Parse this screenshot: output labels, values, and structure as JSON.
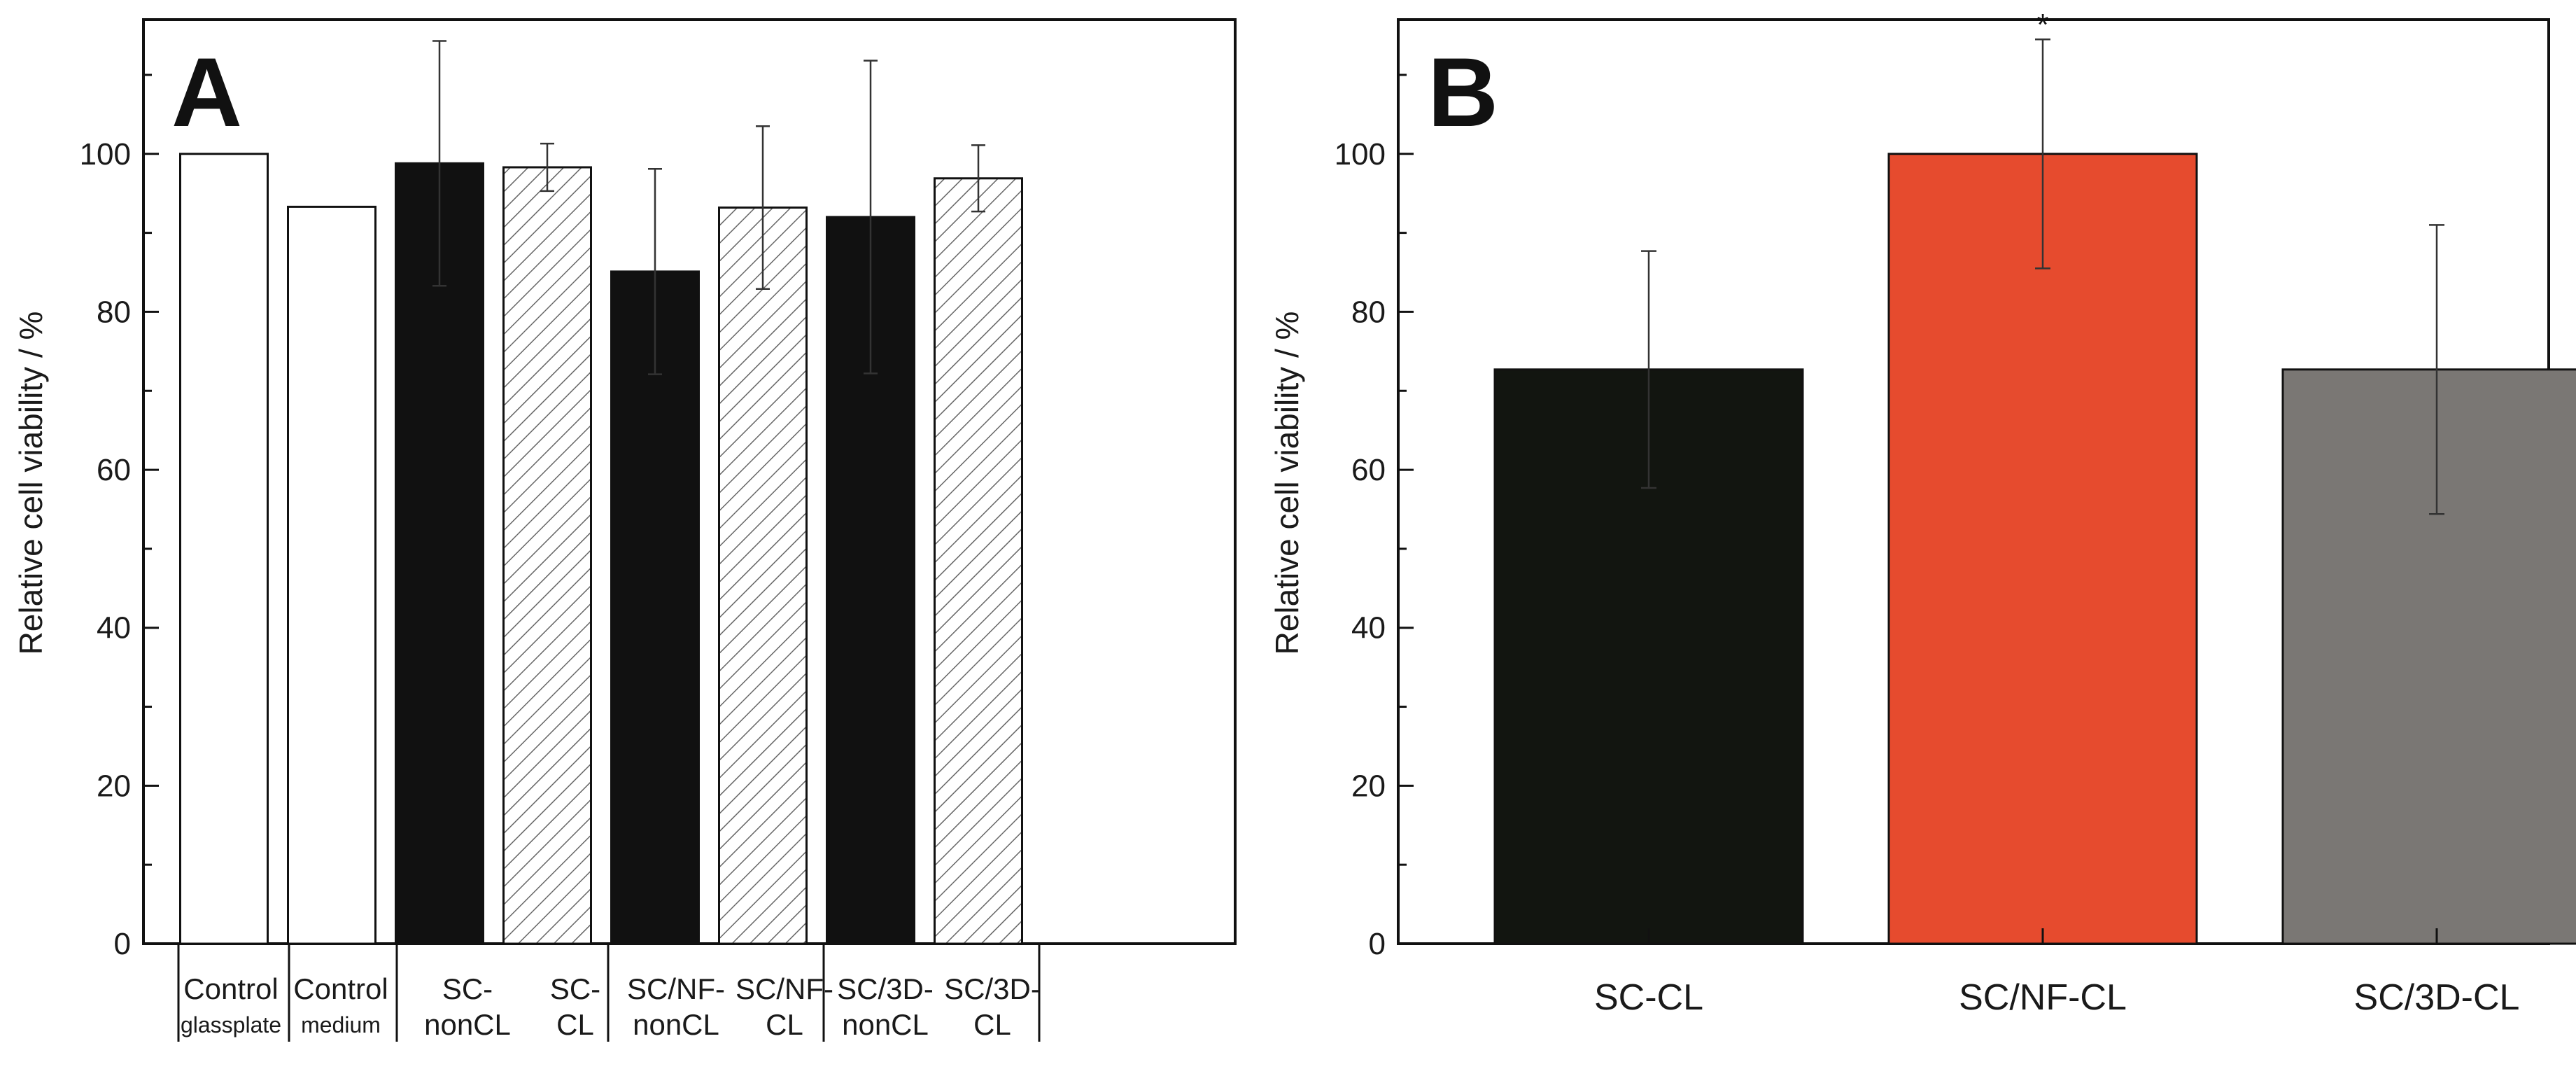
{
  "chart_data": [
    {
      "panel": "A",
      "type": "bar",
      "ylabel": "Relative cell viability / %",
      "ylim": [
        0,
        117
      ],
      "yticks": [
        0,
        20,
        40,
        60,
        80,
        100
      ],
      "categories": [
        {
          "line1": "Control",
          "line2": "glassplate"
        },
        {
          "line1": "Control",
          "line2": "medium"
        },
        {
          "line1": "SC-",
          "line2": "nonCL"
        },
        {
          "line1": "SC-",
          "line2": "CL"
        },
        {
          "line1": "SC/NF-",
          "line2": "nonCL"
        },
        {
          "line1": "SC/NF-",
          "line2": "CL"
        },
        {
          "line1": "SC/3D-",
          "line2": "nonCL"
        },
        {
          "line1": "SC/3D-",
          "line2": "CL"
        }
      ],
      "values": [
        100,
        93.3,
        98.8,
        98.3,
        85.1,
        93.2,
        92.0,
        96.9
      ],
      "errors": [
        null,
        null,
        15.5,
        3.0,
        13.0,
        10.3,
        19.8,
        4.2
      ],
      "fills": [
        "white",
        "white",
        "black",
        "hatch",
        "black",
        "hatch",
        "black",
        "hatch"
      ]
    },
    {
      "panel": "B",
      "type": "bar",
      "ylabel": "Relative cell viability / %",
      "ylim": [
        0,
        117
      ],
      "yticks": [
        0,
        20,
        40,
        60,
        80,
        100
      ],
      "categories": [
        "SC-CL",
        "SC/NF-CL",
        "SC/3D-CL"
      ],
      "values": [
        72.7,
        100,
        72.7
      ],
      "errors": [
        15.0,
        14.5,
        18.3
      ],
      "colors": [
        "#121510",
        "#e64b2e",
        "#7a7774"
      ],
      "annotations": [
        {
          "index": 1,
          "text": "*"
        }
      ]
    }
  ]
}
